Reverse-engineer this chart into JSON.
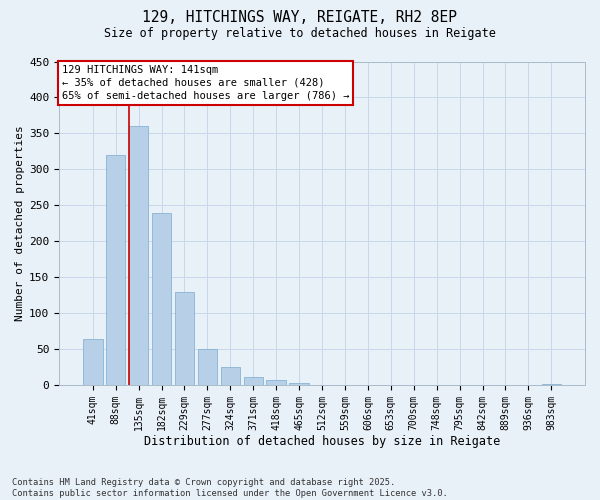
{
  "title_line1": "129, HITCHINGS WAY, REIGATE, RH2 8EP",
  "title_line2": "Size of property relative to detached houses in Reigate",
  "xlabel": "Distribution of detached houses by size in Reigate",
  "ylabel": "Number of detached properties",
  "categories": [
    "41sqm",
    "88sqm",
    "135sqm",
    "182sqm",
    "229sqm",
    "277sqm",
    "324sqm",
    "371sqm",
    "418sqm",
    "465sqm",
    "512sqm",
    "559sqm",
    "606sqm",
    "653sqm",
    "700sqm",
    "748sqm",
    "795sqm",
    "842sqm",
    "889sqm",
    "936sqm",
    "983sqm"
  ],
  "values": [
    65,
    320,
    360,
    240,
    130,
    50,
    25,
    12,
    7,
    3,
    1,
    1,
    0,
    0,
    0,
    0,
    1,
    0,
    0,
    0,
    2
  ],
  "bar_color": "#b8cfe8",
  "bar_edge_color": "#7aaad0",
  "grid_color": "#c8d8ea",
  "background_color": "#e8f0f8",
  "vline_color": "#cc0000",
  "vline_x": 1.575,
  "annotation_text": "129 HITCHINGS WAY: 141sqm\n← 35% of detached houses are smaller (428)\n65% of semi-detached houses are larger (786) →",
  "annotation_box_facecolor": "#ffffff",
  "annotation_box_edgecolor": "#cc0000",
  "ylim": [
    0,
    450
  ],
  "yticks": [
    0,
    50,
    100,
    150,
    200,
    250,
    300,
    350,
    400,
    450
  ],
  "footer": "Contains HM Land Registry data © Crown copyright and database right 2025.\nContains public sector information licensed under the Open Government Licence v3.0."
}
